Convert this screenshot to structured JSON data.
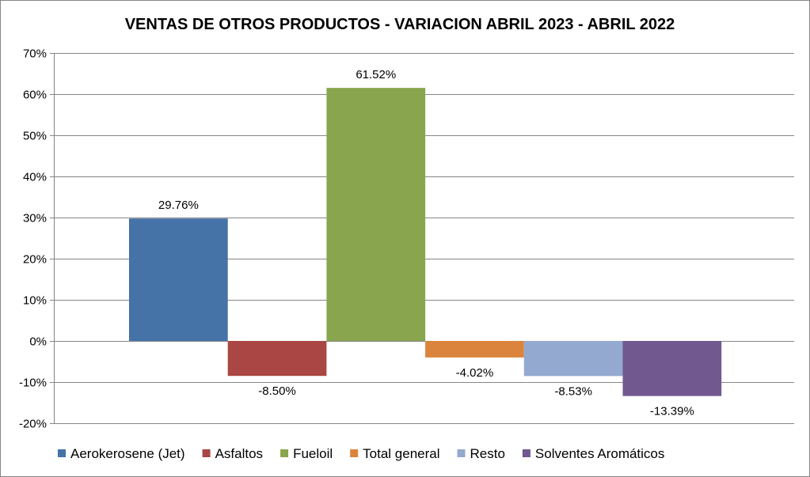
{
  "chart_data": {
    "type": "bar",
    "title": "VENTAS DE OTROS PRODUCTOS - VARIACION ABRIL 2023 - ABRIL 2022",
    "xlabel": "",
    "ylabel": "",
    "ylim": [
      -20,
      70
    ],
    "yticks": [
      "-20%",
      "-10%",
      "0%",
      "10%",
      "20%",
      "30%",
      "40%",
      "50%",
      "60%",
      "70%"
    ],
    "grid": true,
    "legend_position": "bottom",
    "series": [
      {
        "name": "Aerokerosene (Jet)",
        "value": 29.76,
        "label": "29.76%",
        "color": "#4572A7"
      },
      {
        "name": "Asfaltos",
        "value": -8.5,
        "label": "-8.50%",
        "color": "#AA4643"
      },
      {
        "name": "Fueloil",
        "value": 61.52,
        "label": "61.52%",
        "color": "#89A54E"
      },
      {
        "name": "Total general",
        "value": -4.02,
        "label": "-4.02%",
        "color": "#DB843D"
      },
      {
        "name": "Resto",
        "value": -8.53,
        "label": "-8.53%",
        "color": "#93A9CF"
      },
      {
        "name": "Solventes Aromáticos",
        "value": -13.39,
        "label": "-13.39%",
        "color": "#71588F"
      }
    ]
  }
}
